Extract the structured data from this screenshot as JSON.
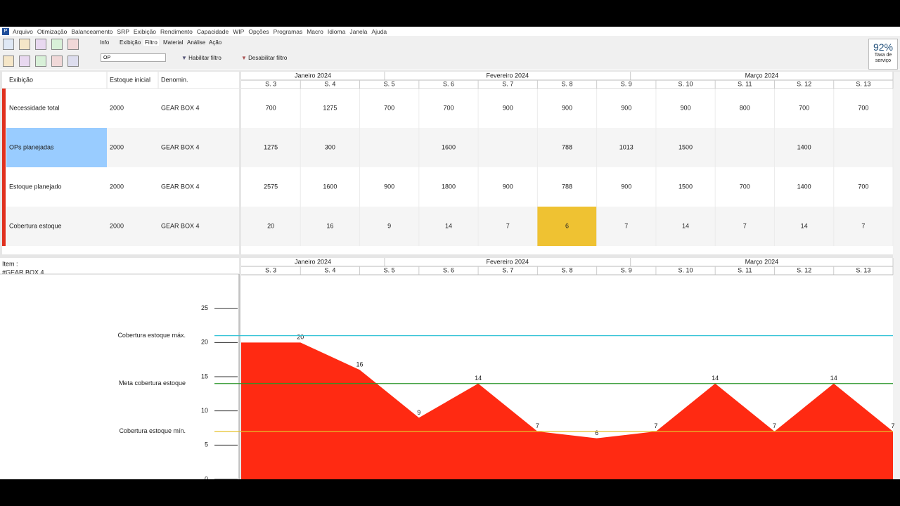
{
  "menu": [
    "Arquivo",
    "Otimização",
    "Balanceamento",
    "SRP",
    "Exibição",
    "Rendimento",
    "Capacidade",
    "WIP",
    "Opções",
    "Programas",
    "Macro",
    "Idioma",
    "Janela",
    "Ajuda"
  ],
  "tabs": [
    "Info",
    "Exibição",
    "Filtro",
    "Material",
    "Análise",
    "Ação"
  ],
  "filter_select": "OP",
  "buttons": [
    "Habilitar filtro",
    "Desabilitar filtro"
  ],
  "kpi": {
    "value": "92%",
    "label": "Taxa de serviço"
  },
  "table": {
    "columns": [
      "Exibição",
      "Estoque inicial",
      "Denomin."
    ],
    "rows": [
      [
        "Necessidade total",
        "2000",
        "GEAR BOX 4"
      ],
      [
        "OPs planejadas",
        "2000",
        "GEAR BOX 4"
      ],
      [
        "Estoque planejado",
        "2000",
        "GEAR BOX 4"
      ],
      [
        "Cobertura estoque",
        "2000",
        "GEAR BOX 4"
      ]
    ]
  },
  "plan": {
    "months": [
      "Janeiro 2024",
      "Fevereiro 2024",
      "Março 2024"
    ],
    "weeks": [
      "S. 3",
      "S. 4",
      "S. 5",
      "S. 6",
      "S. 7",
      "S. 8",
      "S. 9",
      "S. 10",
      "S. 11",
      "S. 12",
      "S. 13"
    ],
    "rows": [
      [
        700,
        1275,
        700,
        700,
        900,
        900,
        900,
        900,
        800,
        700,
        700
      ],
      [
        1275,
        300,
        null,
        1600,
        null,
        788,
        1013,
        1500,
        null,
        1400,
        null
      ],
      [
        2575,
        1600,
        900,
        1800,
        900,
        788,
        900,
        1500,
        700,
        1400,
        700
      ],
      [
        20,
        16,
        9,
        14,
        7,
        6,
        7,
        14,
        7,
        14,
        7
      ]
    ]
  },
  "chart": {
    "type": "area",
    "item_label": "Item :",
    "item": "#GEAR BOX 4",
    "ylim": [
      0,
      30
    ],
    "yticks": [
      0,
      5,
      10,
      15,
      20,
      25
    ],
    "values": [
      20,
      16,
      9,
      14,
      7,
      6,
      7,
      14,
      7,
      14,
      7
    ],
    "color": "#ff2a12",
    "reference_lines": [
      {
        "name": "Cobertura estoque máx.",
        "value": 21,
        "color": "#33c3d6"
      },
      {
        "name": "Meta cobertura estoque",
        "value": 14,
        "color": "#2a962a"
      },
      {
        "name": "Cobertura estoque mín.",
        "value": 7,
        "color": "#e6c02a"
      }
    ]
  }
}
